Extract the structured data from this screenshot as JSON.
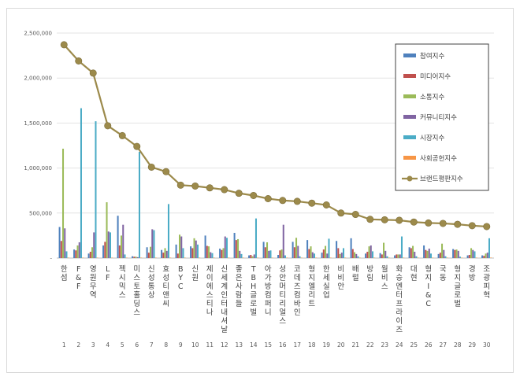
{
  "chart_data": {
    "type": "bar",
    "title": "",
    "xlabel": "",
    "ylabel": "",
    "ylim": [
      0,
      2500000
    ],
    "yticks": [
      0,
      500000,
      1000000,
      1500000,
      2000000,
      2500000
    ],
    "ytick_labels": [
      "-",
      "500,000",
      "1,000,000",
      "1,500,000",
      "2,000,000",
      "2,500,000"
    ],
    "grid": true,
    "legend_position": "right",
    "categories": [
      "한섬",
      "F&F",
      "영원무역",
      "LF",
      "젝시믹스",
      "미스토홀딩스",
      "신성통상",
      "효성티앤씨",
      "BYC",
      "신원",
      "제이에스티나",
      "신세계인터내셔날",
      "좋은사람들",
      "TBH글로벌",
      "아가방컴퍼니",
      "성안머티리얼스",
      "코데즈컴바인",
      "형지엘리트",
      "한세실업",
      "비비안",
      "배럴",
      "방림",
      "월비스",
      "화승엔터프라이즈",
      "대현",
      "형지I&C",
      "국동",
      "형지글로벌",
      "경방",
      "조광피혁"
    ],
    "ranks": [
      "1",
      "2",
      "3",
      "4",
      "5",
      "6",
      "7",
      "8",
      "9",
      "10",
      "11",
      "12",
      "13",
      "14",
      "15",
      "16",
      "17",
      "18",
      "19",
      "20",
      "21",
      "22",
      "23",
      "24",
      "25",
      "26",
      "27",
      "28",
      "29",
      "30"
    ],
    "series": [
      {
        "name": "참여지수",
        "color": "#4f81bd",
        "values": [
          345000,
          95000,
          50000,
          140000,
          470000,
          20000,
          120000,
          90000,
          150000,
          130000,
          250000,
          105000,
          280000,
          30000,
          180000,
          35000,
          180000,
          200000,
          60000,
          190000,
          220000,
          50000,
          55000,
          30000,
          120000,
          140000,
          45000,
          100000,
          30000,
          30000
        ]
      },
      {
        "name": "미디어지수",
        "color": "#c0504d",
        "values": [
          190000,
          85000,
          70000,
          180000,
          140000,
          15000,
          60000,
          60000,
          50000,
          110000,
          135000,
          90000,
          200000,
          35000,
          120000,
          85000,
          120000,
          100000,
          95000,
          110000,
          100000,
          70000,
          40000,
          40000,
          110000,
          90000,
          60000,
          90000,
          35000,
          25000
        ]
      },
      {
        "name": "소통지수",
        "color": "#9bbb59",
        "values": [
          1215000,
          140000,
          120000,
          620000,
          250000,
          15000,
          125000,
          110000,
          260000,
          220000,
          130000,
          110000,
          210000,
          20000,
          175000,
          95000,
          225000,
          130000,
          135000,
          45000,
          65000,
          130000,
          170000,
          40000,
          135000,
          80000,
          160000,
          95000,
          110000,
          50000
        ]
      },
      {
        "name": "커뮤니티지수",
        "color": "#8064a2",
        "values": [
          330000,
          175000,
          285000,
          295000,
          370000,
          10000,
          320000,
          80000,
          240000,
          195000,
          65000,
          240000,
          80000,
          40000,
          80000,
          370000,
          135000,
          65000,
          50000,
          60000,
          45000,
          140000,
          80000,
          40000,
          70000,
          105000,
          90000,
          80000,
          90000,
          60000
        ]
      },
      {
        "name": "시장지수",
        "color": "#4bacc6",
        "values": [
          75000,
          1665000,
          1520000,
          285000,
          40000,
          1180000,
          310000,
          600000,
          110000,
          150000,
          55000,
          225000,
          45000,
          440000,
          85000,
          30000,
          20000,
          50000,
          215000,
          110000,
          20000,
          75000,
          20000,
          240000,
          20000,
          50000,
          20000,
          15000,
          75000,
          220000
        ]
      },
      {
        "name": "사회공헌지수",
        "color": "#f79646",
        "values": [
          5000,
          5000,
          5000,
          5000,
          5000,
          5000,
          5000,
          5000,
          5000,
          5000,
          5000,
          5000,
          5000,
          5000,
          5000,
          5000,
          5000,
          5000,
          5000,
          5000,
          5000,
          5000,
          5000,
          5000,
          5000,
          5000,
          5000,
          5000,
          5000,
          5000
        ]
      }
    ],
    "line": {
      "name": "브랜드평판지수",
      "color": "#9c8a4b",
      "values": [
        2370000,
        2190000,
        2055000,
        1470000,
        1360000,
        1240000,
        1010000,
        960000,
        810000,
        800000,
        780000,
        760000,
        720000,
        695000,
        660000,
        640000,
        630000,
        610000,
        590000,
        500000,
        485000,
        430000,
        425000,
        420000,
        400000,
        390000,
        385000,
        375000,
        360000,
        350000
      ]
    }
  }
}
